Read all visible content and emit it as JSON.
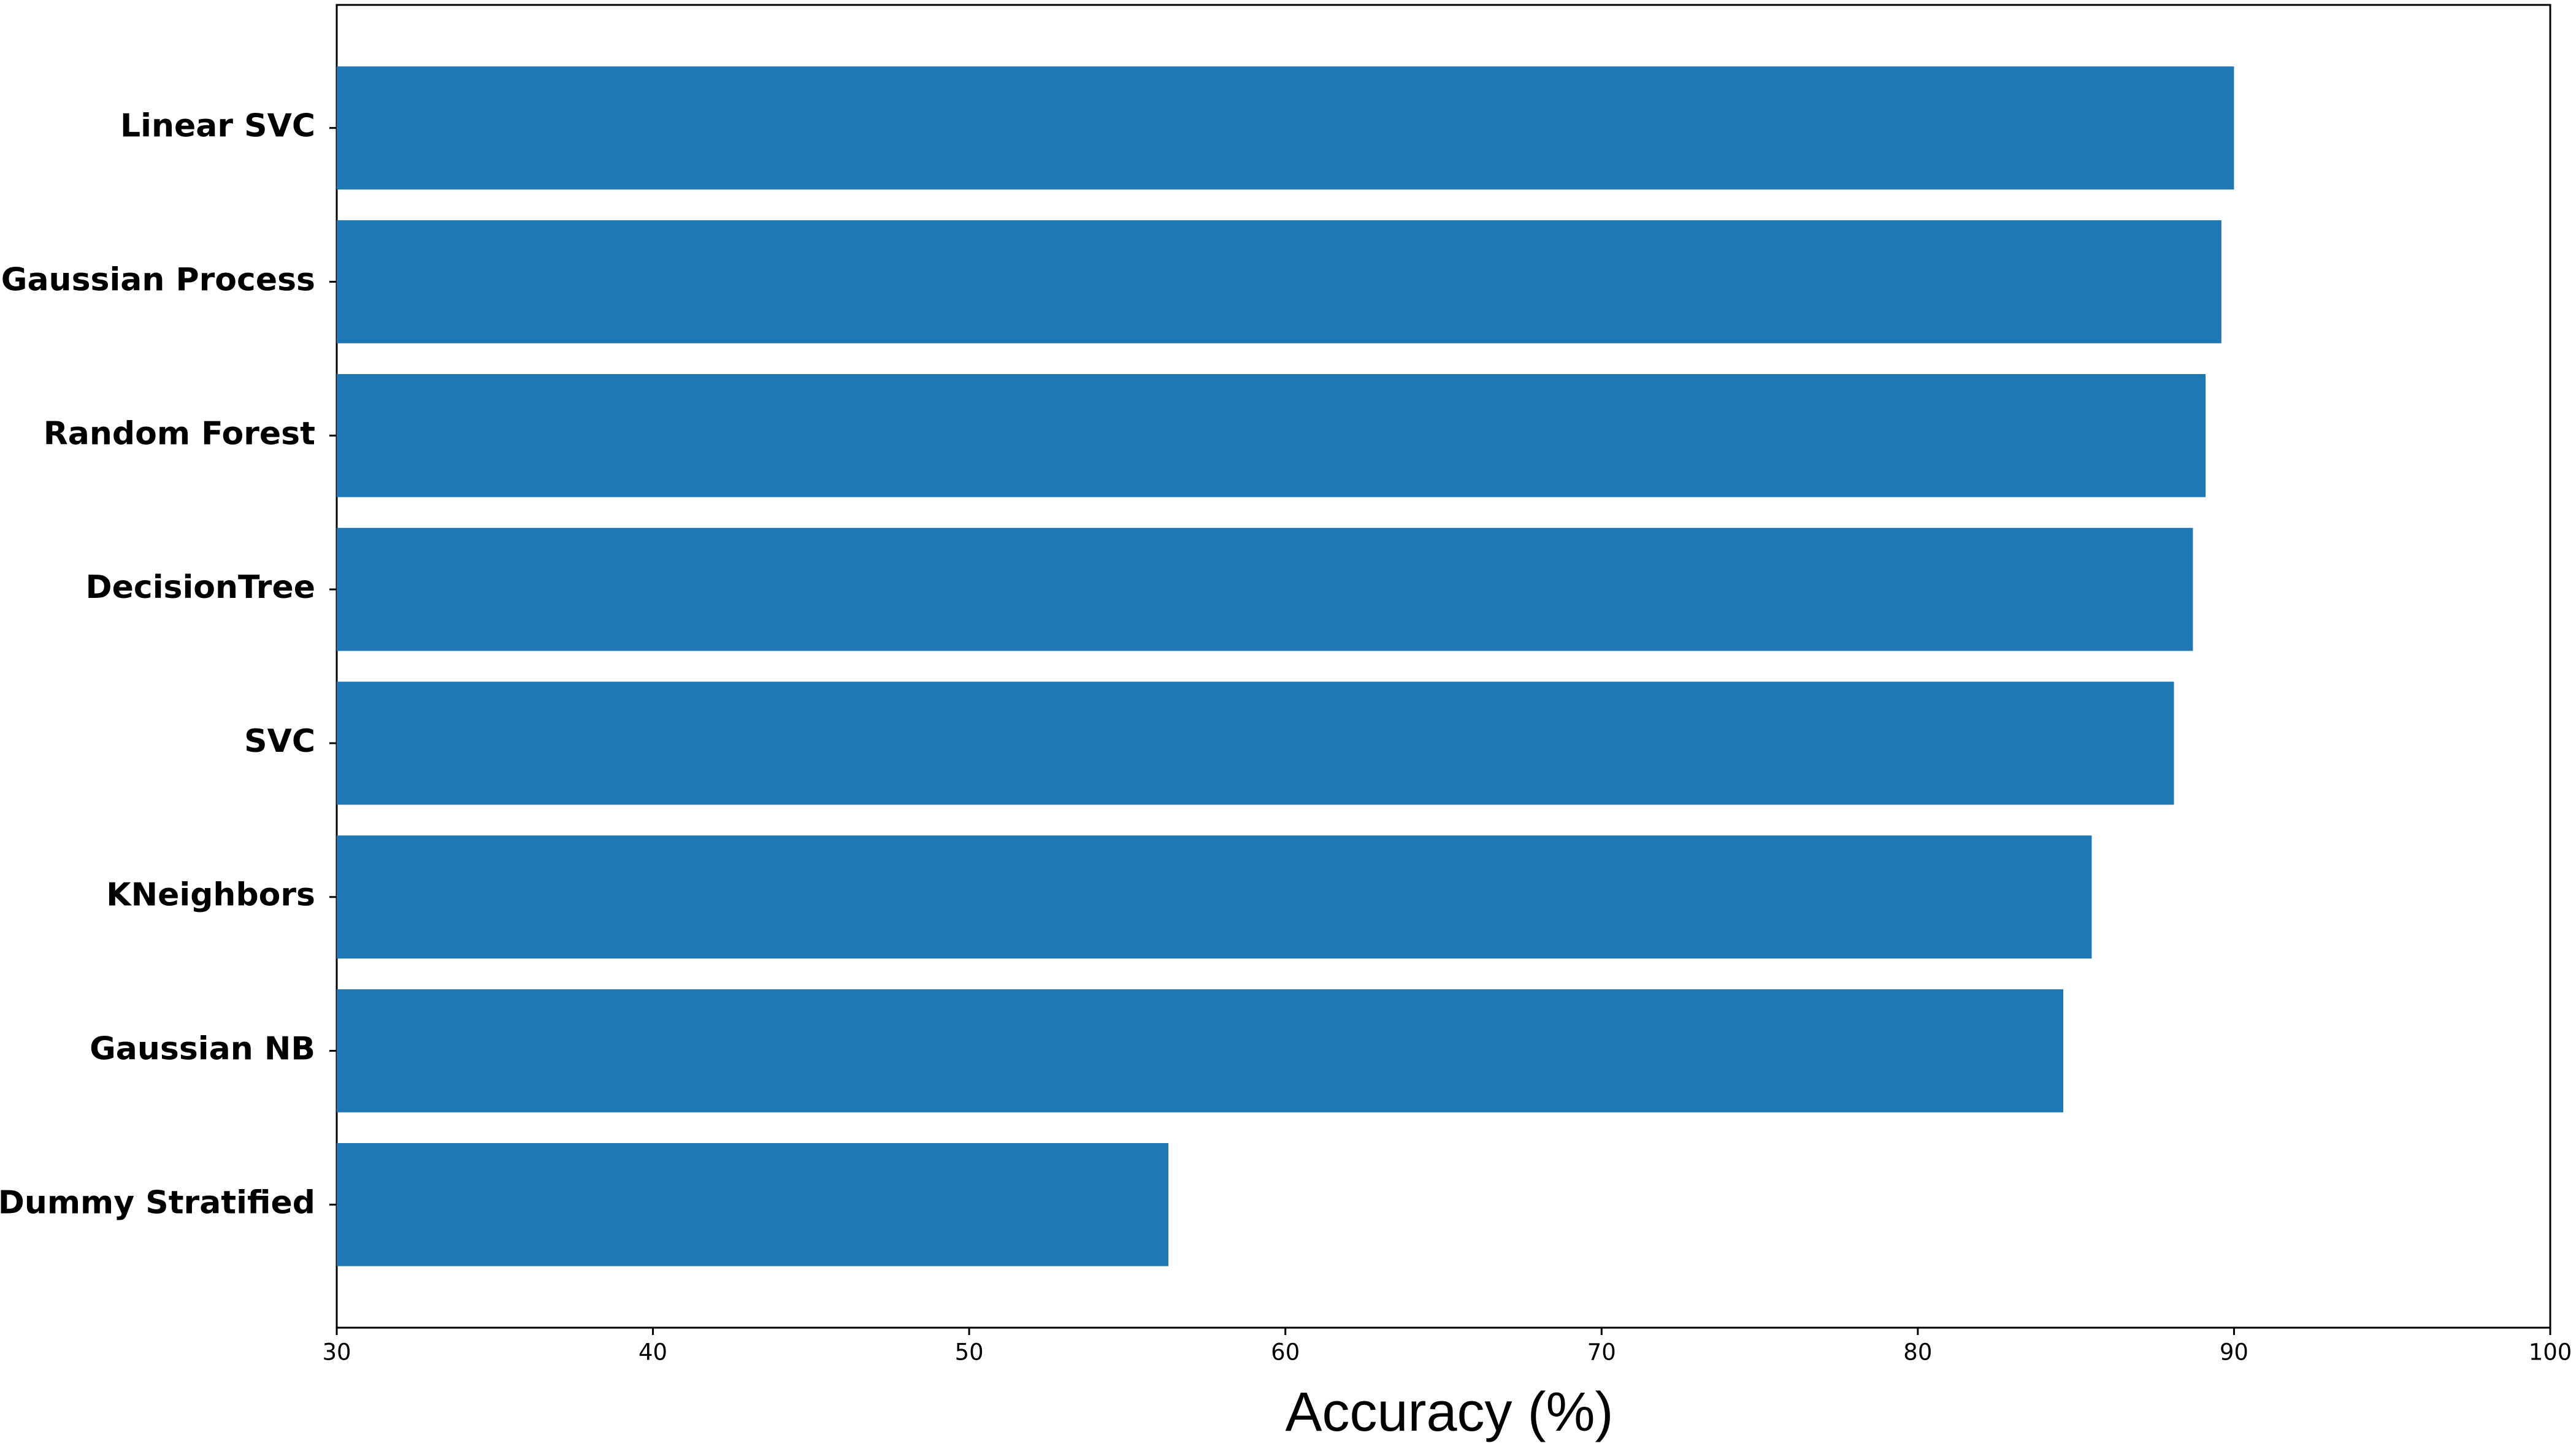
{
  "chart_data": {
    "type": "barh",
    "xlabel": "Accuracy (%)",
    "categories": [
      "Linear SVC",
      "Gaussian Process",
      "Random Forest",
      "DecisionTree",
      "SVC",
      "KNeighbors",
      "Gaussian NB",
      "Dummy Stratified"
    ],
    "values": [
      90.0,
      89.6,
      89.1,
      88.7,
      88.1,
      85.5,
      84.6,
      56.3
    ],
    "color": "#1f77b4",
    "xlim": [
      30,
      100
    ],
    "xticks": [
      30,
      40,
      50,
      60,
      70,
      80,
      90,
      100
    ],
    "grid": false
  }
}
